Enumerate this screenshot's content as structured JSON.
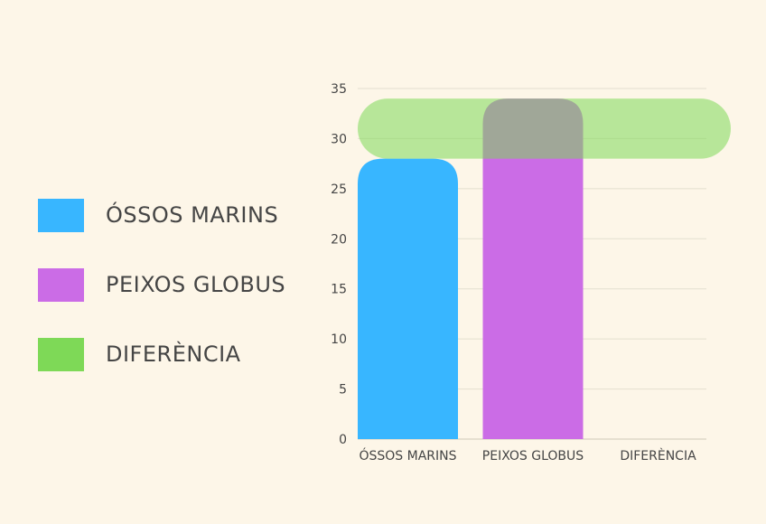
{
  "chart_data": {
    "type": "bar",
    "categories": [
      "ÓSSOS MARINS",
      "PEIXOS GLOBUS",
      "DIFERÈNCIA"
    ],
    "series": [
      {
        "name": "ÓSSOS MARINS",
        "color": "#38b6ff",
        "bars": [
          {
            "category": "ÓSSOS MARINS",
            "from": 0,
            "to": 28
          }
        ]
      },
      {
        "name": "PEIXOS GLOBUS",
        "color": "#cb6ce6",
        "bars": [
          {
            "category": "PEIXOS GLOBUS",
            "from": 0,
            "to": 34
          }
        ]
      },
      {
        "name": "DIFERÈNCIA",
        "color": "#7ed957",
        "bars": [
          {
            "category_span": [
              "ÓSSOS MARINS",
              "DIFERÈNCIA"
            ],
            "from": 28,
            "to": 34
          }
        ],
        "orientation": "horizontal",
        "opacity": 0.55
      }
    ],
    "yticks": [
      0,
      5,
      10,
      15,
      20,
      25,
      30,
      35
    ],
    "ylim": [
      0,
      35
    ],
    "grid": true,
    "legend_position": "left",
    "title": "",
    "xlabel": "",
    "ylabel": ""
  }
}
